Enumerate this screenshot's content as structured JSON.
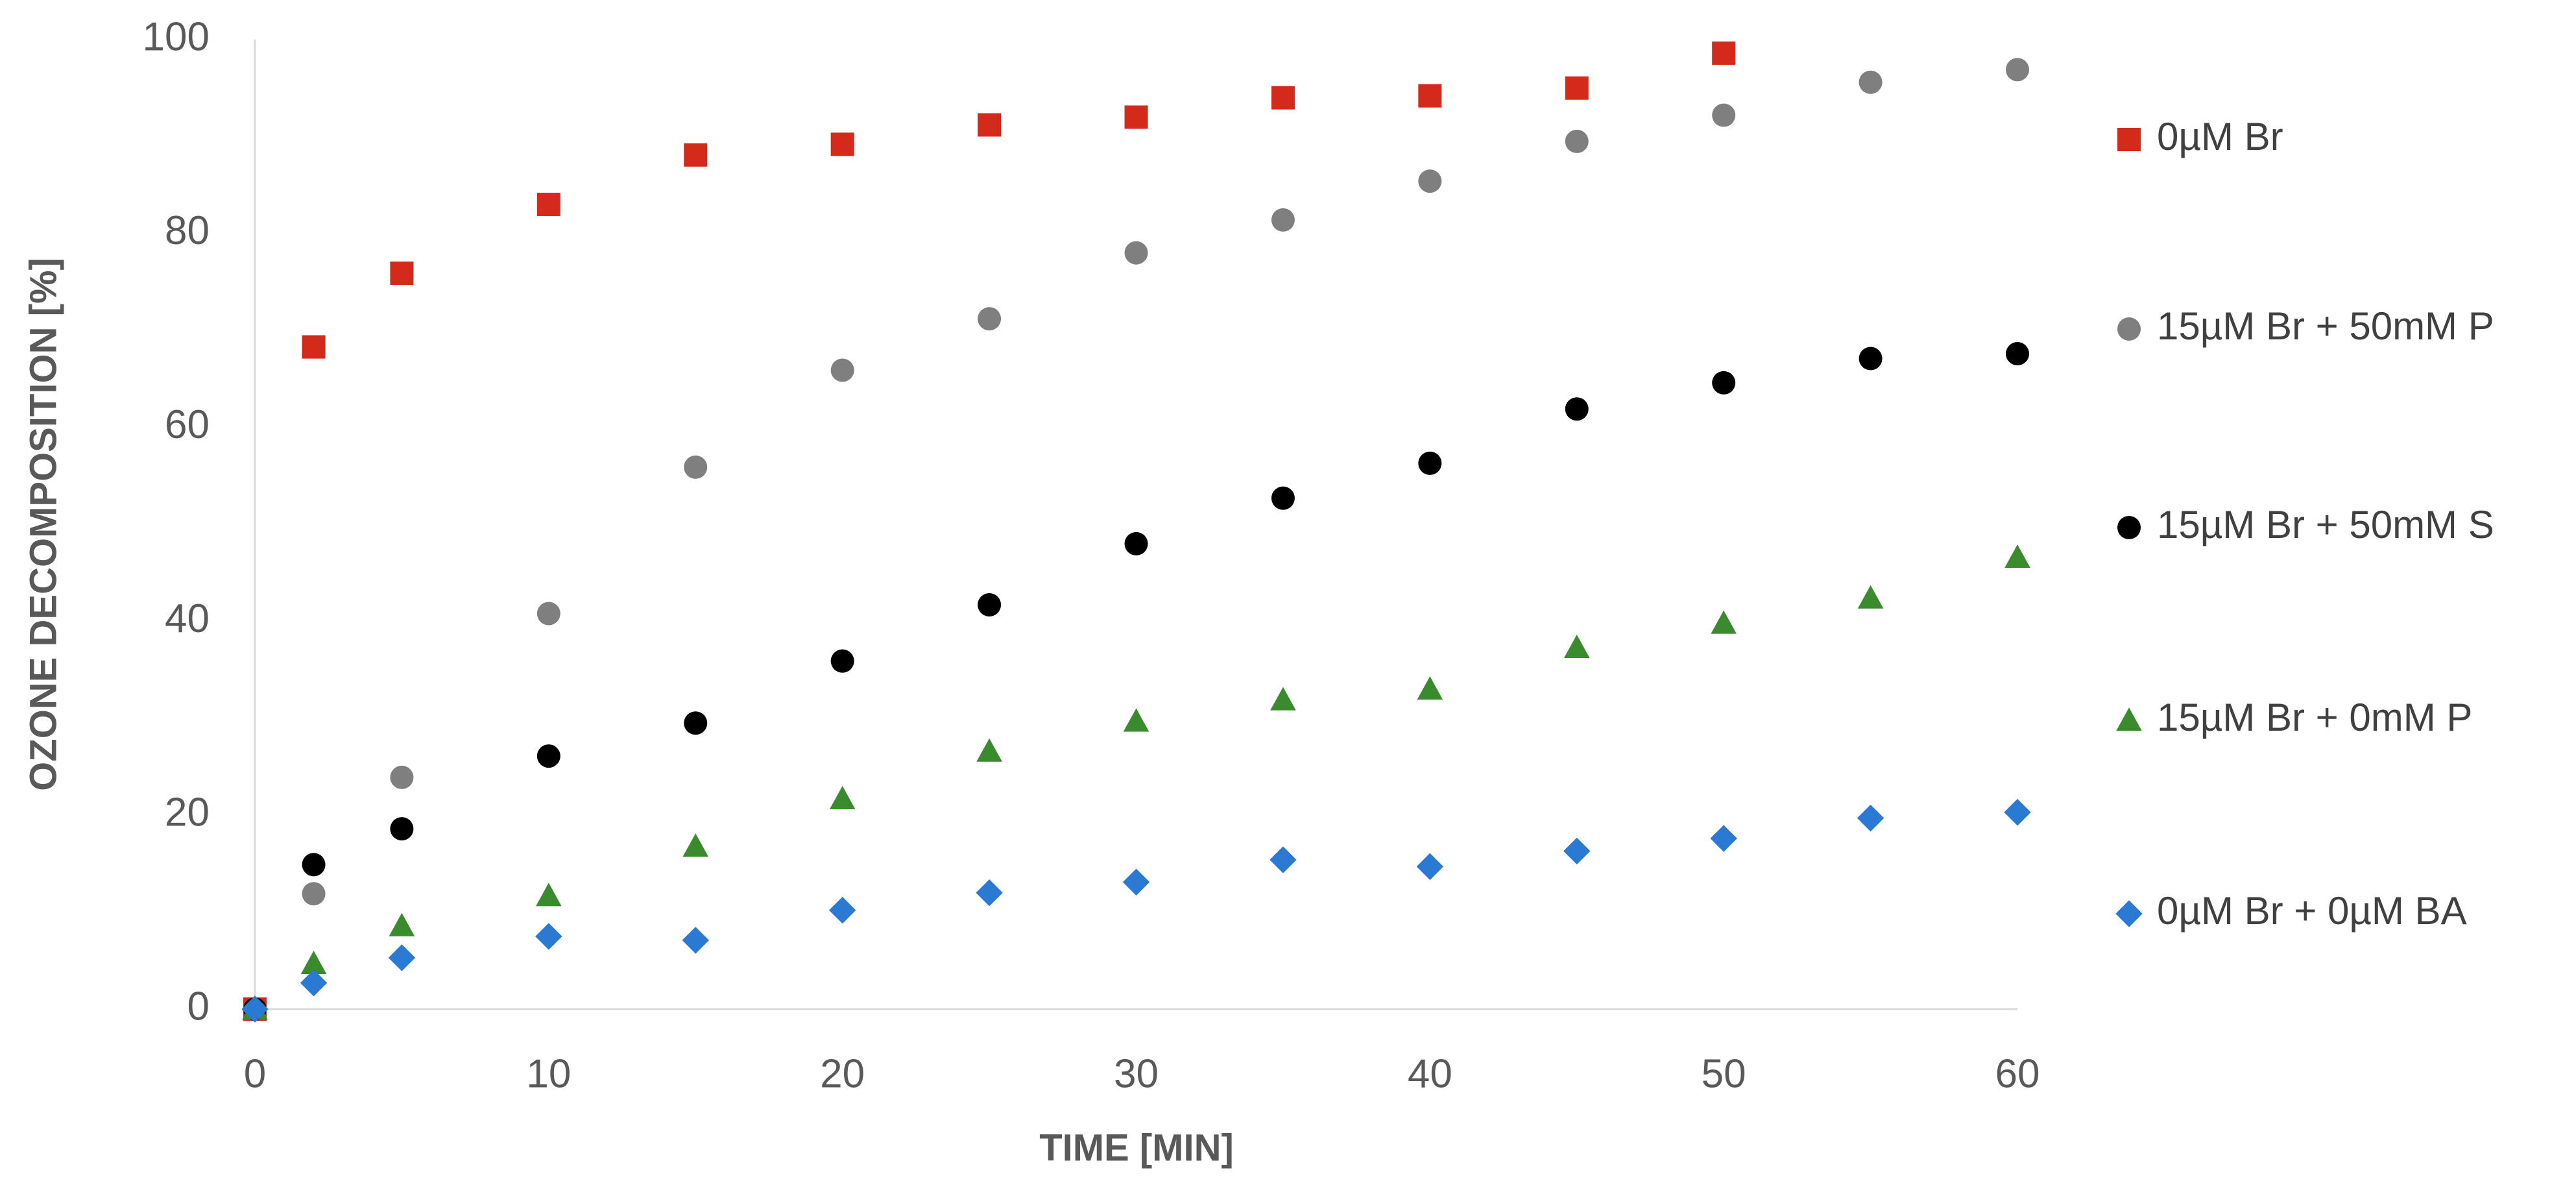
{
  "chart_data": {
    "type": "scatter",
    "x_label": "TIME [MIN]",
    "y_label": "OZONE  DECOMPOSITION [%]",
    "xlim": [
      0,
      60
    ],
    "xticks": [
      0,
      10,
      20,
      30,
      40,
      50,
      60
    ],
    "ylim": [
      0,
      100
    ],
    "yticks": [
      0,
      20,
      40,
      60,
      80,
      100
    ],
    "grid": false,
    "legend": "right",
    "series": [
      {
        "name": "0µM Br",
        "color": "#d42a1c",
        "marker": "square",
        "x": [
          0,
          2,
          5,
          10,
          15,
          20,
          25,
          30,
          35,
          40,
          45,
          50
        ],
        "values": [
          0,
          68.3,
          75.9,
          83,
          88.1,
          89.2,
          91.2,
          92,
          94,
          94.2,
          95,
          98.6
        ]
      },
      {
        "name": "15µM Br + 50mM P",
        "color": "#7f7f7f",
        "marker": "circle",
        "x": [
          0,
          2,
          5,
          10,
          15,
          20,
          25,
          30,
          35,
          40,
          45,
          50,
          55,
          60
        ],
        "values": [
          0,
          11.9,
          23.9,
          40.8,
          55.9,
          65.9,
          71.2,
          78,
          81.4,
          85.4,
          89.5,
          92.2,
          95.6,
          96.9
        ]
      },
      {
        "name": "15µM Br + 50mM S",
        "color": "#000000",
        "marker": "circle",
        "x": [
          0,
          2,
          5,
          10,
          15,
          20,
          25,
          30,
          35,
          40,
          45,
          50,
          55,
          60
        ],
        "values": [
          0,
          14.9,
          18.6,
          26.1,
          29.5,
          35.9,
          41.7,
          48,
          52.7,
          56.3,
          61.9,
          64.6,
          67.1,
          67.6
        ]
      },
      {
        "name": "15µM Br + 0mM P",
        "color": "#3a8a2e",
        "marker": "triangle",
        "x": [
          0,
          2,
          5,
          10,
          15,
          20,
          25,
          30,
          35,
          40,
          45,
          50,
          55,
          60
        ],
        "values": [
          0,
          4.7,
          8.6,
          11.7,
          16.8,
          21.7,
          26.6,
          29.7,
          31.9,
          33,
          37.3,
          39.8,
          42.4,
          46.6
        ]
      },
      {
        "name": "0µM Br + 0µM BA",
        "color": "#2a7ad4",
        "marker": "diamond",
        "x": [
          0,
          2,
          5,
          10,
          15,
          20,
          25,
          30,
          35,
          40,
          45,
          50,
          55,
          60
        ],
        "values": [
          0,
          2.7,
          5.3,
          7.5,
          7.1,
          10.2,
          12,
          13.1,
          15.4,
          14.7,
          16.3,
          17.6,
          19.7,
          20.3
        ]
      }
    ]
  }
}
